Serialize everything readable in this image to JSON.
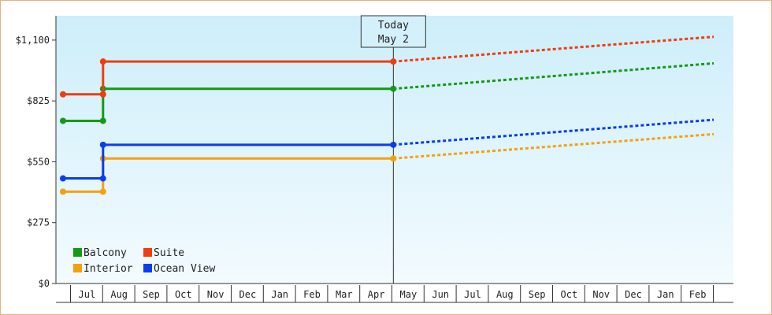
{
  "chart_data": {
    "type": "line",
    "y_ticks": [
      "$0",
      "$275",
      "$550",
      "$825",
      "$1,100"
    ],
    "ylim": [
      0,
      1210
    ],
    "x_ticks": [
      "Jul",
      "Aug",
      "Sep",
      "Oct",
      "Nov",
      "Dec",
      "Jan",
      "Feb",
      "Mar",
      "Apr",
      "May",
      "Jun",
      "Jul",
      "Aug",
      "Sep",
      "Oct",
      "Nov",
      "Dec",
      "Jan",
      "Feb"
    ],
    "today": {
      "line1": "Today",
      "line2": "May 2"
    },
    "legend_position": "bottom-left",
    "grid": false,
    "series": [
      {
        "name": "Balcony",
        "color": "#149a14",
        "points": [
          [
            "Jun 24",
            735
          ],
          [
            "Aug 1",
            735
          ],
          [
            "Aug 1",
            880
          ],
          [
            "May 2",
            880
          ]
        ],
        "projection": [
          [
            "May 2",
            880
          ],
          [
            "Mar 1",
            995
          ]
        ]
      },
      {
        "name": "Suite",
        "color": "#f03c0f",
        "points": [
          [
            "Jun 24",
            855
          ],
          [
            "Aug 1",
            855
          ],
          [
            "Aug 1",
            1003
          ],
          [
            "May 2",
            1003
          ]
        ],
        "projection": [
          [
            "May 2",
            1003
          ],
          [
            "Mar 1",
            1115
          ]
        ]
      },
      {
        "name": "Interior",
        "color": "#f5a00f",
        "points": [
          [
            "Jun 24",
            415
          ],
          [
            "Aug 1",
            415
          ],
          [
            "Aug 1",
            565
          ],
          [
            "May 2",
            565
          ]
        ],
        "projection": [
          [
            "May 2",
            565
          ],
          [
            "Mar 1",
            675
          ]
        ]
      },
      {
        "name": "Ocean View",
        "color": "#0a3cf0",
        "points": [
          [
            "Jun 24",
            475
          ],
          [
            "Aug 1",
            475
          ],
          [
            "Aug 1",
            627
          ],
          [
            "May 2",
            627
          ]
        ],
        "projection": [
          [
            "May 2",
            627
          ],
          [
            "Mar 1",
            740
          ]
        ]
      }
    ]
  }
}
